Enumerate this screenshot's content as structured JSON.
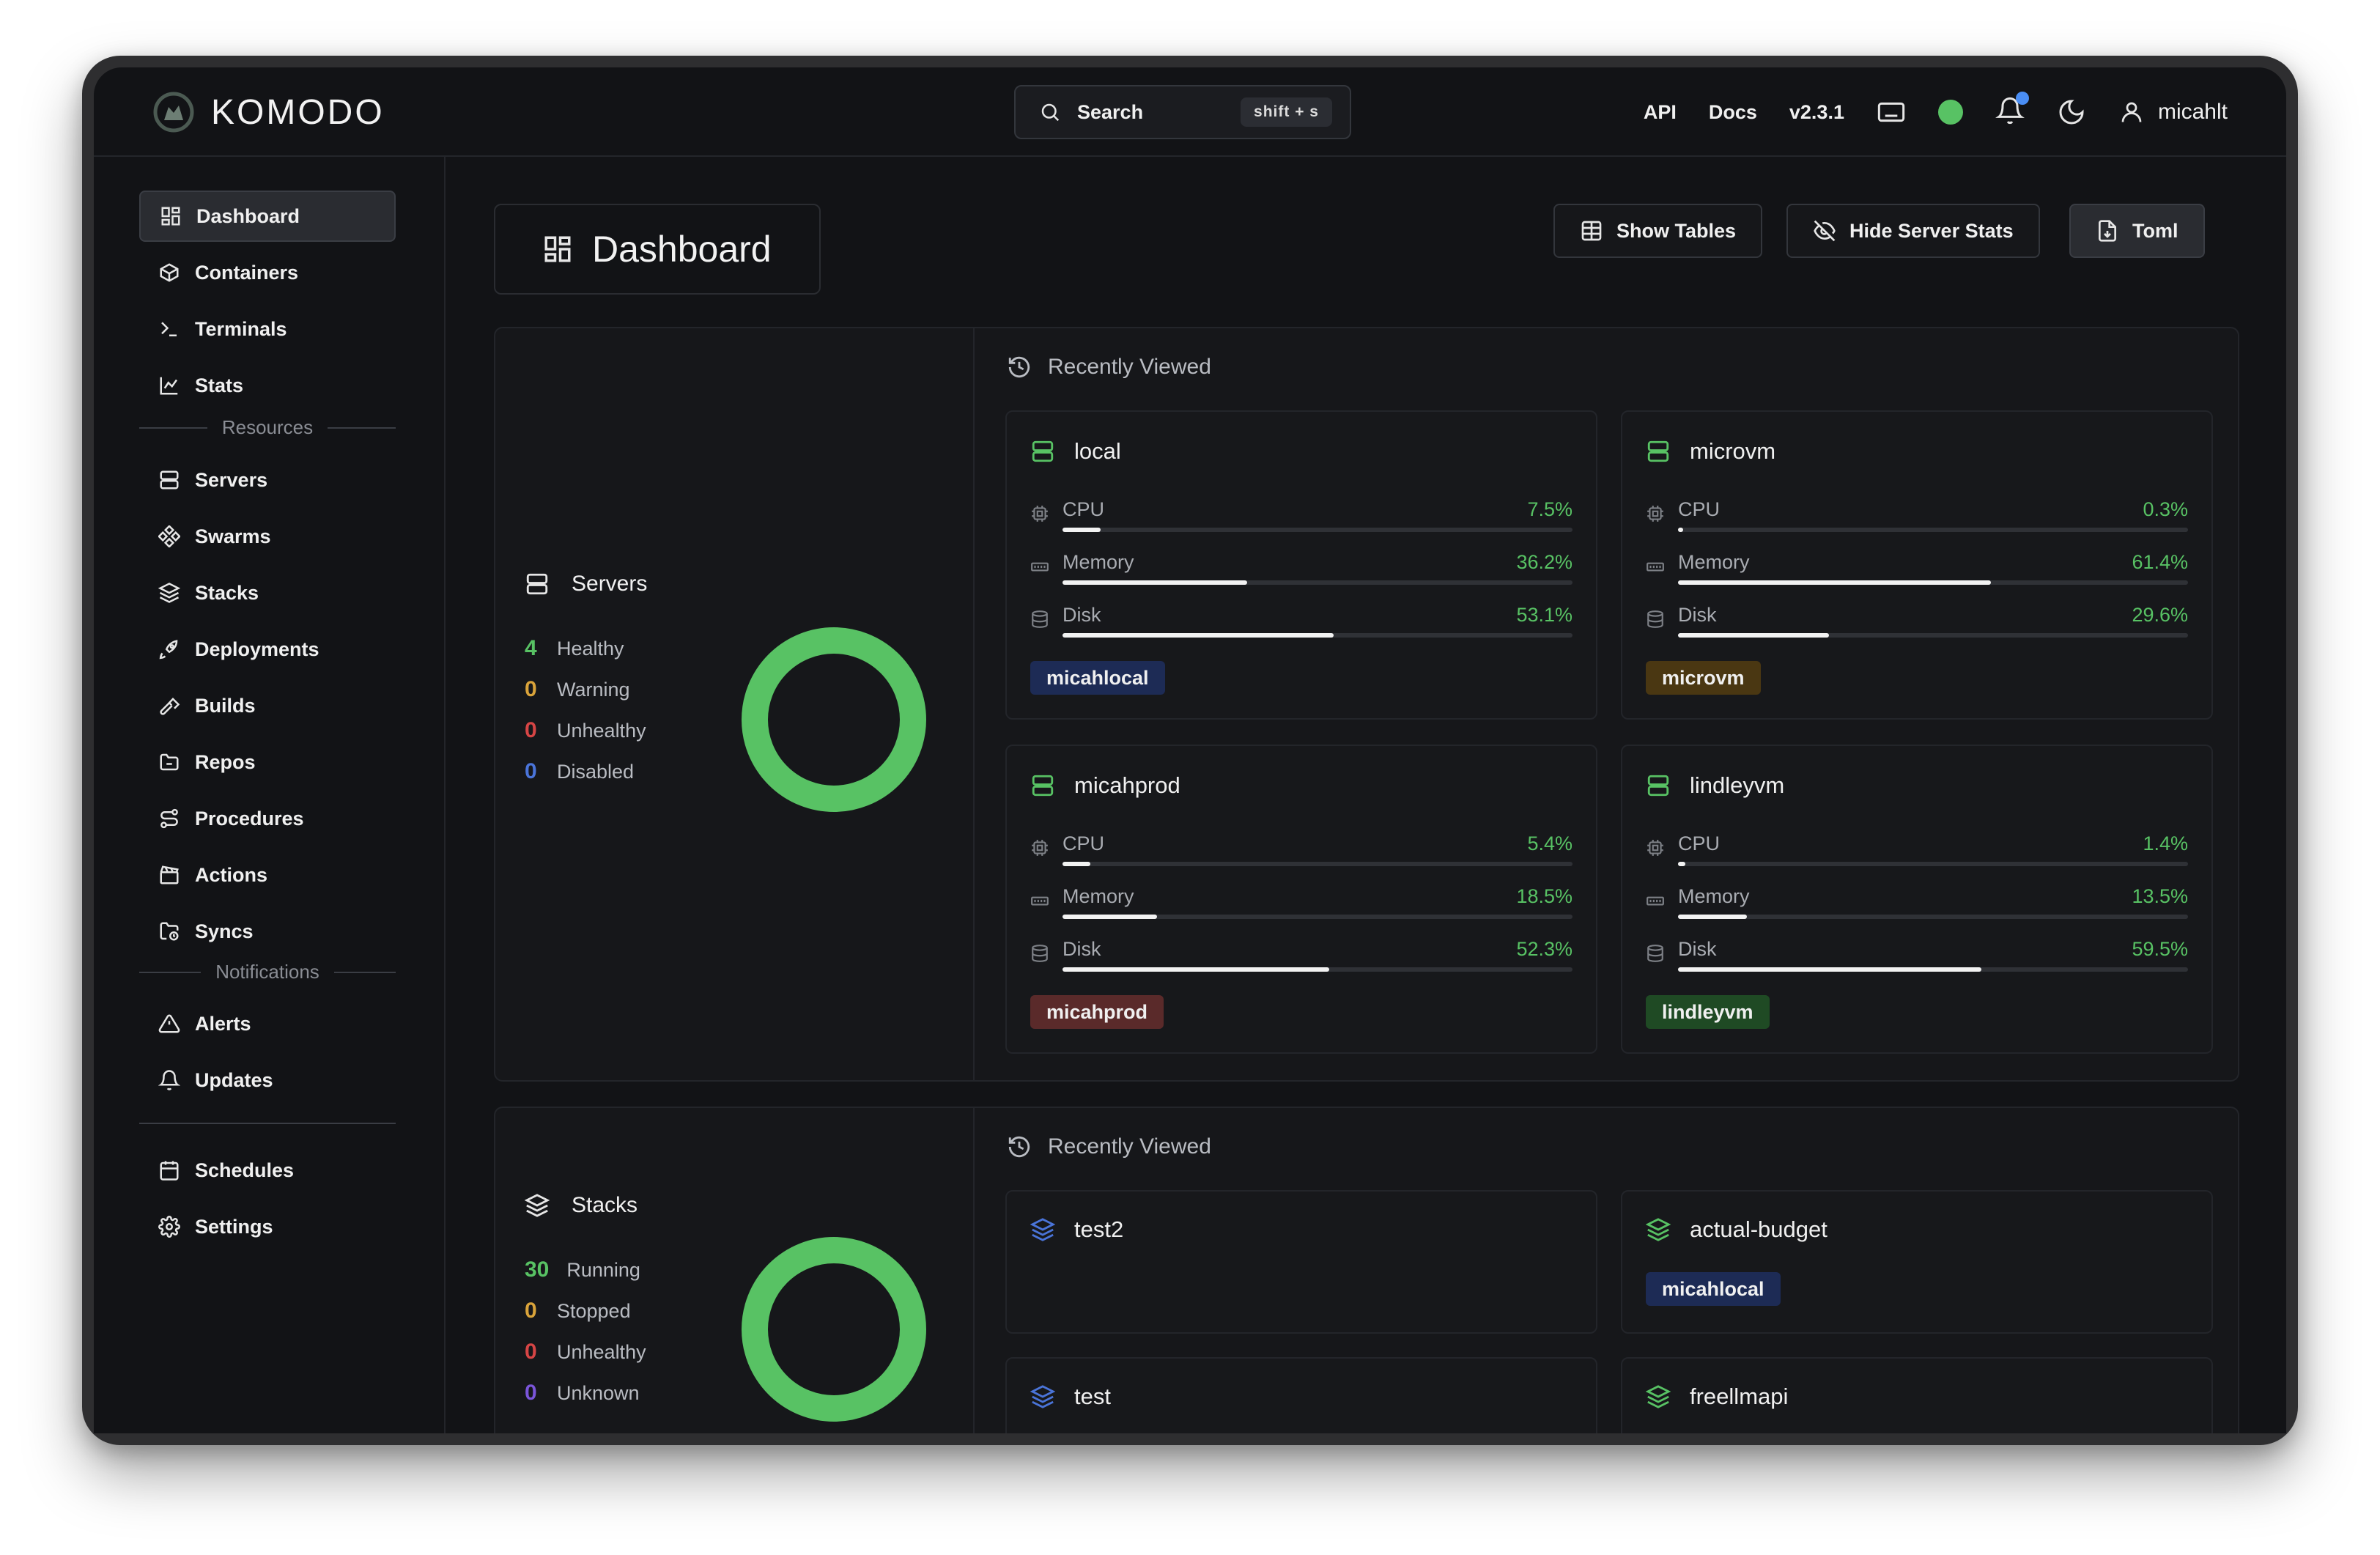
{
  "app": {
    "name": "KOMODO"
  },
  "topbar": {
    "search_label": "Search",
    "search_shortcut": "shift + s",
    "links": [
      "API",
      "Docs",
      "v2.3.1"
    ],
    "user": "micahlt",
    "status_color": "#58c264",
    "notification_badge_color": "#4a8ef5"
  },
  "sidebar": {
    "items": [
      {
        "label": "Dashboard",
        "icon": "dashboard-icon",
        "active": true
      },
      {
        "label": "Containers",
        "icon": "box-icon"
      },
      {
        "label": "Terminals",
        "icon": "terminal-icon"
      },
      {
        "label": "Stats",
        "icon": "chart-icon"
      },
      {
        "label": "Servers",
        "icon": "server-icon"
      },
      {
        "label": "Swarms",
        "icon": "swarm-icon"
      },
      {
        "label": "Stacks",
        "icon": "layers-icon"
      },
      {
        "label": "Deployments",
        "icon": "rocket-icon"
      },
      {
        "label": "Builds",
        "icon": "hammer-icon"
      },
      {
        "label": "Repos",
        "icon": "folder-icon"
      },
      {
        "label": "Procedures",
        "icon": "route-icon"
      },
      {
        "label": "Actions",
        "icon": "clapperboard-icon"
      },
      {
        "label": "Syncs",
        "icon": "folder-sync-icon"
      },
      {
        "label": "Alerts",
        "icon": "alert-triangle-icon"
      },
      {
        "label": "Updates",
        "icon": "bell-icon"
      },
      {
        "label": "Schedules",
        "icon": "calendar-icon"
      },
      {
        "label": "Settings",
        "icon": "settings-icon"
      }
    ],
    "section_resources": "Resources",
    "section_notifications": "Notifications"
  },
  "main": {
    "title": "Dashboard",
    "buttons": {
      "show_tables": "Show Tables",
      "hide_server_stats": "Hide Server Stats",
      "toml": "Toml"
    },
    "servers": {
      "title": "Servers",
      "stats": [
        {
          "n": "4",
          "label": "Healthy",
          "color": "#58c264"
        },
        {
          "n": "0",
          "label": "Warning",
          "color": "#d9a33a"
        },
        {
          "n": "0",
          "label": "Unhealthy",
          "color": "#d64545"
        },
        {
          "n": "0",
          "label": "Disabled",
          "color": "#4a74d9"
        }
      ],
      "recent_title": "Recently Viewed",
      "cards": [
        {
          "name": "local",
          "cpu_label": "CPU",
          "cpu": "7.5%",
          "cpu_frac": 0.075,
          "mem_label": "Memory",
          "mem": "36.2%",
          "mem_frac": 0.362,
          "disk_label": "Disk",
          "disk": "53.1%",
          "disk_frac": 0.531,
          "tag": "micahlocal",
          "tag_color": "#1d2b55"
        },
        {
          "name": "microvm",
          "cpu_label": "CPU",
          "cpu": "0.3%",
          "cpu_frac": 0.003,
          "mem_label": "Memory",
          "mem": "61.4%",
          "mem_frac": 0.614,
          "disk_label": "Disk",
          "disk": "29.6%",
          "disk_frac": 0.296,
          "tag": "microvm",
          "tag_color": "#4a3712"
        },
        {
          "name": "micahprod",
          "cpu_label": "CPU",
          "cpu": "5.4%",
          "cpu_frac": 0.054,
          "mem_label": "Memory",
          "mem": "18.5%",
          "mem_frac": 0.185,
          "disk_label": "Disk",
          "disk": "52.3%",
          "disk_frac": 0.523,
          "tag": "micahprod",
          "tag_color": "#5a2a2a"
        },
        {
          "name": "lindleyvm",
          "cpu_label": "CPU",
          "cpu": "1.4%",
          "cpu_frac": 0.014,
          "mem_label": "Memory",
          "mem": "13.5%",
          "mem_frac": 0.135,
          "disk_label": "Disk",
          "disk": "59.5%",
          "disk_frac": 0.595,
          "tag": "lindleyvm",
          "tag_color": "#1f4a24"
        }
      ]
    },
    "stacks": {
      "title": "Stacks",
      "stats": [
        {
          "n": "30",
          "label": "Running",
          "color": "#58c264"
        },
        {
          "n": "0",
          "label": "Stopped",
          "color": "#d9a33a"
        },
        {
          "n": "0",
          "label": "Unhealthy",
          "color": "#d64545"
        },
        {
          "n": "0",
          "label": "Unknown",
          "color": "#7a55d9"
        }
      ],
      "recent_title": "Recently Viewed",
      "cards": [
        {
          "name": "test2",
          "icon_color": "#4a74d9"
        },
        {
          "name": "actual-budget",
          "icon_color": "#58c264",
          "tag": "micahlocal",
          "tag_color": "#1d2b55"
        },
        {
          "name": "test",
          "icon_color": "#4a74d9"
        },
        {
          "name": "freellmapi",
          "icon_color": "#58c264"
        }
      ]
    }
  }
}
